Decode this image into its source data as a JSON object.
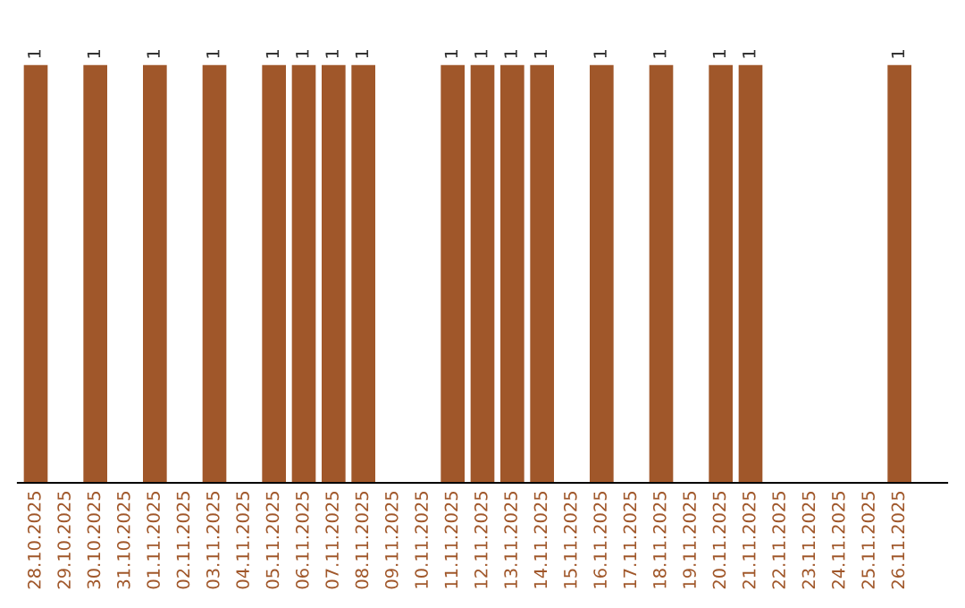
{
  "chart_data": {
    "type": "bar",
    "categories": [
      "28.10.2025",
      "29.10.2025",
      "30.10.2025",
      "31.10.2025",
      "01.11.2025",
      "02.11.2025",
      "03.11.2025",
      "04.11.2025",
      "05.11.2025",
      "06.11.2025",
      "07.11.2025",
      "08.11.2025",
      "09.11.2025",
      "10.11.2025",
      "11.11.2025",
      "12.11.2025",
      "13.11.2025",
      "14.11.2025",
      "15.11.2025",
      "16.11.2025",
      "17.11.2025",
      "18.11.2025",
      "19.11.2025",
      "20.11.2025",
      "21.11.2025",
      "22.11.2025",
      "23.11.2025",
      "24.11.2025",
      "25.11.2025",
      "26.11.2025"
    ],
    "values": [
      1,
      null,
      1,
      null,
      1,
      null,
      1,
      null,
      1,
      1,
      1,
      1,
      null,
      null,
      1,
      1,
      1,
      1,
      null,
      1,
      null,
      1,
      null,
      1,
      1,
      null,
      null,
      null,
      null,
      1
    ],
    "color": "#a0572a",
    "data_labels": true,
    "grid": false,
    "legend": false
  }
}
